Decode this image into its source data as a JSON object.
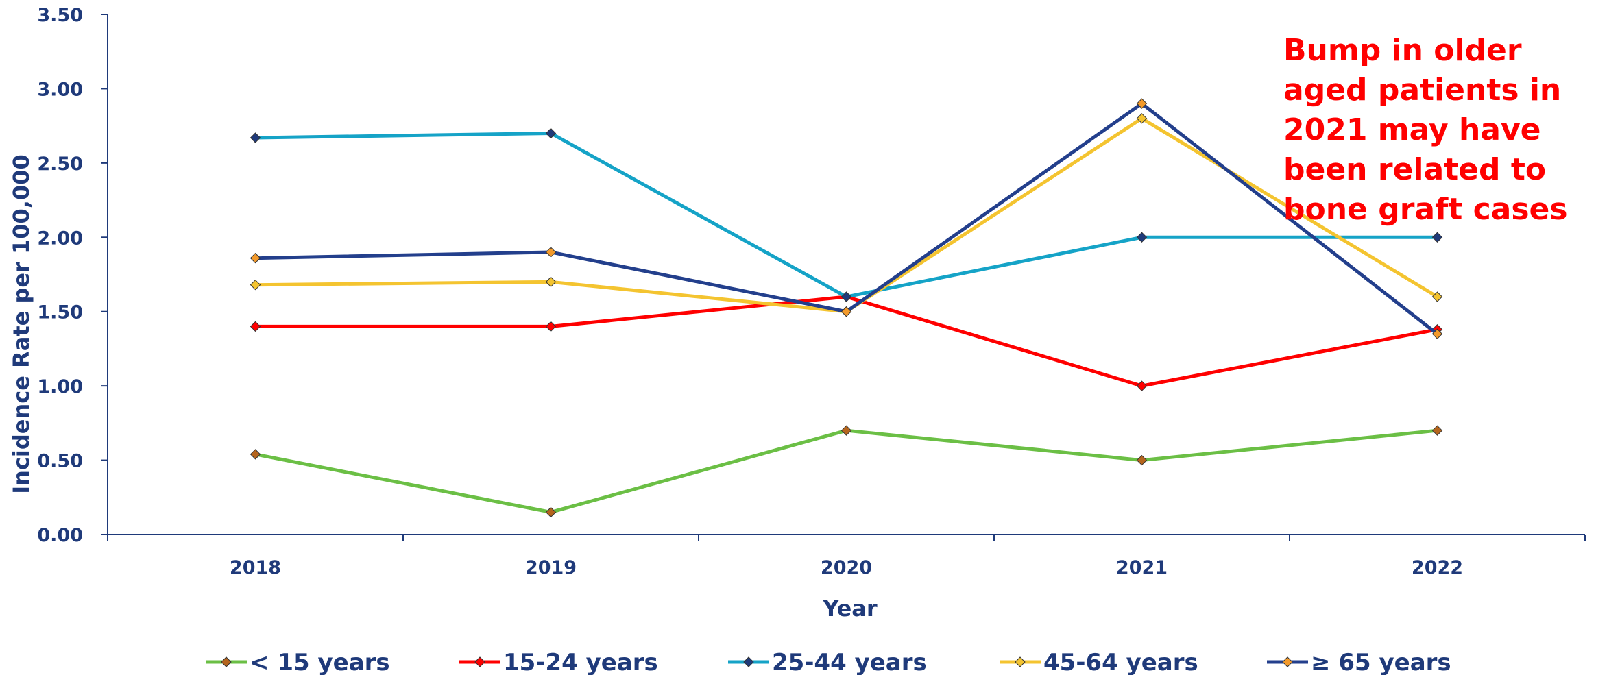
{
  "chart_data": {
    "type": "line",
    "xlabel": "Year",
    "ylabel": "Incidence Rate per 100,000",
    "ylim": [
      0,
      3.5
    ],
    "y_ticks": [
      "0.00",
      "0.50",
      "1.00",
      "1.50",
      "2.00",
      "2.50",
      "3.00",
      "3.50"
    ],
    "x": [
      "2018",
      "2019",
      "2020",
      "2021",
      "2022"
    ],
    "grid": false,
    "legend_position": "bottom",
    "series": [
      {
        "name": "< 15 years",
        "color": "#6bbf45",
        "marker_color": "#b5651d",
        "values": [
          0.54,
          0.15,
          0.7,
          0.5,
          0.7
        ]
      },
      {
        "name": "15-24 years",
        "color": "#ff0000",
        "marker_color": "#ff0000",
        "values": [
          1.4,
          1.4,
          1.6,
          1.0,
          1.38
        ]
      },
      {
        "name": "25-44 years",
        "color": "#15a3c7",
        "marker_color": "#1f3a7a",
        "values": [
          2.67,
          2.7,
          1.6,
          2.0,
          2.0
        ]
      },
      {
        "name": "45-64 years",
        "color": "#f4c430",
        "marker_color": "#f4c430",
        "values": [
          1.68,
          1.7,
          1.5,
          2.8,
          1.6
        ]
      },
      {
        "name": "≥ 65 years",
        "color": "#233f8c",
        "marker_color": "#f39a2b",
        "values": [
          1.86,
          1.9,
          1.5,
          2.9,
          1.35
        ]
      }
    ],
    "annotation": "Bump in older aged patients in 2021 may have been related to bone graft cases"
  }
}
